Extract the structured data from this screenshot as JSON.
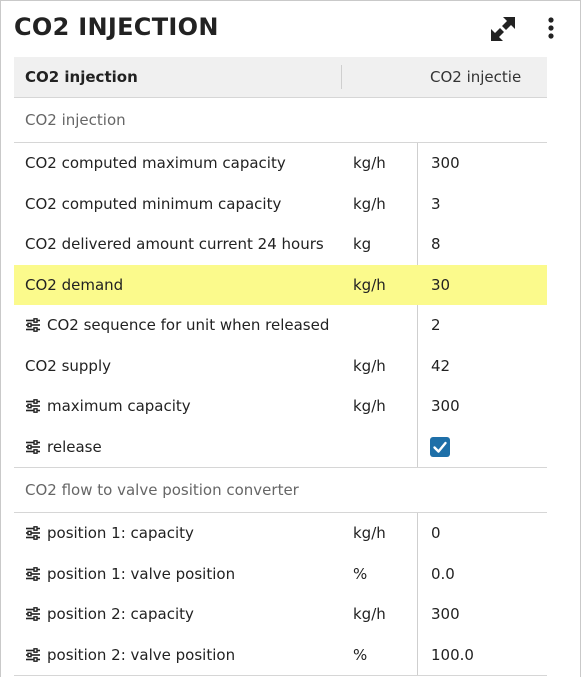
{
  "panel": {
    "title": "CO2 INJECTION",
    "expand_icon": "expand-arrows-icon",
    "menu_icon": "more-vertical-icon"
  },
  "table": {
    "header": {
      "name": "CO2 injection",
      "col2": "CO2 injectie"
    },
    "sections": [
      {
        "title": "CO2 injection",
        "rows": [
          {
            "name": "CO2 computed maximum capacity",
            "unit": "kg/h",
            "value": "300",
            "settable": false
          },
          {
            "name": "CO2 computed minimum capacity",
            "unit": "kg/h",
            "value": "3",
            "settable": false
          },
          {
            "name": "CO2 delivered amount current 24 hours",
            "unit": "kg",
            "value": "8",
            "settable": false
          },
          {
            "name": "CO2 demand",
            "unit": "kg/h",
            "value": "30",
            "settable": false,
            "highlighted": true
          },
          {
            "name": "CO2 sequence for unit when released",
            "unit": "",
            "value": "2",
            "settable": true
          },
          {
            "name": "CO2 supply",
            "unit": "kg/h",
            "value": "42",
            "settable": false
          },
          {
            "name": "maximum capacity",
            "unit": "kg/h",
            "value": "300",
            "settable": true
          },
          {
            "name": "release",
            "unit": "",
            "value": "",
            "checked": true,
            "settable": true
          }
        ]
      },
      {
        "title": "CO2 flow to valve position converter",
        "rows": [
          {
            "name": "position 1: capacity",
            "unit": "kg/h",
            "value": "0",
            "settable": true
          },
          {
            "name": "position 1: valve position",
            "unit": "%",
            "value": "0.0",
            "settable": true
          },
          {
            "name": "position 2: capacity",
            "unit": "kg/h",
            "value": "300",
            "settable": true
          },
          {
            "name": "position 2: valve position",
            "unit": "%",
            "value": "100.0",
            "settable": true
          }
        ]
      }
    ]
  },
  "colors": {
    "highlight": "#fbfa8c",
    "checkbox": "#1e6fa8",
    "header_bg": "#f0f0f0"
  }
}
